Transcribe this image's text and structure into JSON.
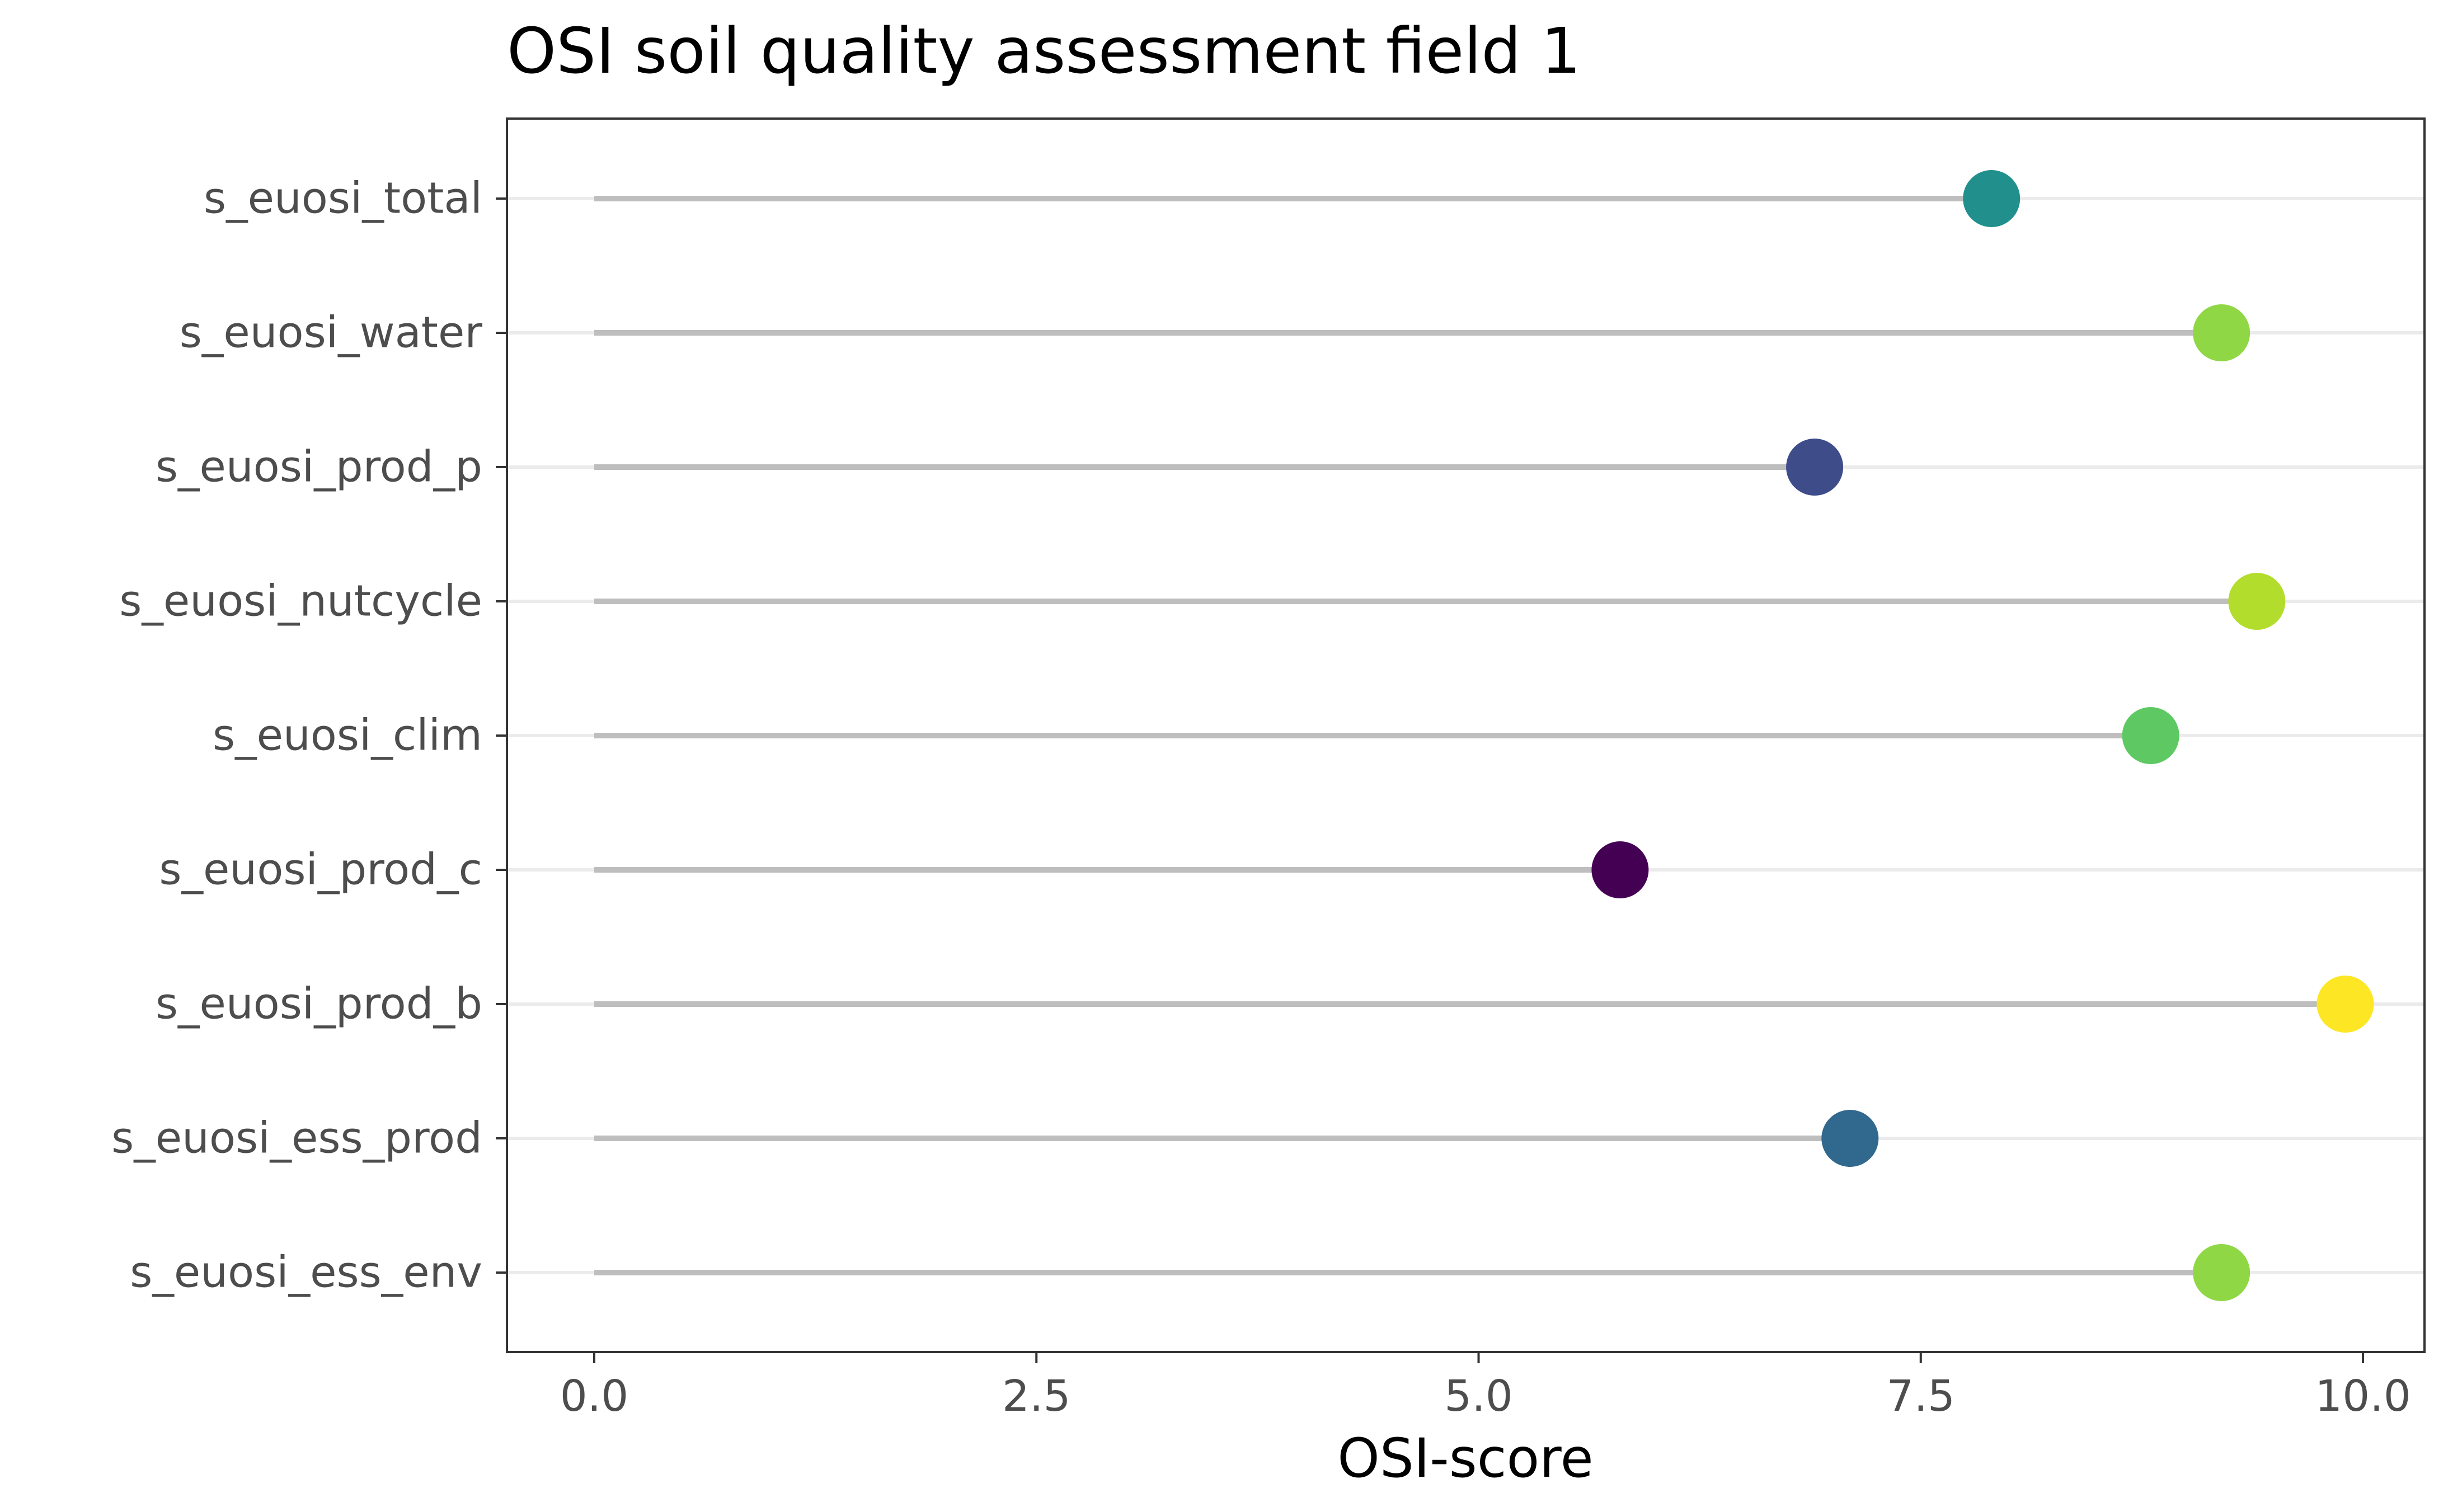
{
  "chart_data": {
    "type": "lollipop",
    "title": "OSI soil quality assessment field 1",
    "xlabel": "OSI-score",
    "ylabel": "",
    "xlim": [
      -0.5,
      10.4
    ],
    "x_ticks": [
      "0.0",
      "2.5",
      "5.0",
      "7.5",
      "10.0"
    ],
    "x_tick_values": [
      0,
      2.5,
      5,
      7.5,
      10
    ],
    "categories": [
      "s_euosi_total",
      "s_euosi_water",
      "s_euosi_prod_p",
      "s_euosi_nutcycle",
      "s_euosi_clim",
      "s_euosi_prod_c",
      "s_euosi_prod_b",
      "s_euosi_ess_prod",
      "s_euosi_ess_env"
    ],
    "values": [
      7.9,
      9.2,
      6.9,
      9.4,
      8.8,
      5.8,
      9.9,
      7.1,
      9.2
    ],
    "point_colors": [
      "#21908C",
      "#8FD744",
      "#3E4C8A",
      "#B2DD2D",
      "#5EC962",
      "#440154",
      "#FDE725",
      "#31688E",
      "#8FD744"
    ],
    "stem_color": "#BEBEBE",
    "grid": "horizontal major only",
    "legend": "none"
  }
}
